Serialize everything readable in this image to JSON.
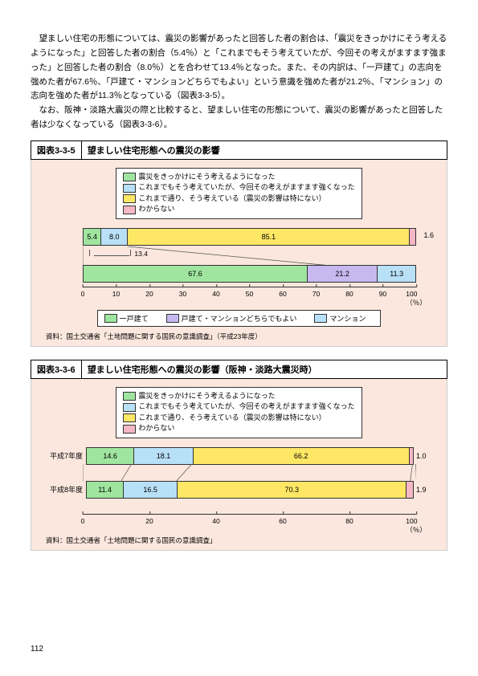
{
  "paragraphs": {
    "p1": "望ましい住宅の形態については、震災の影響があったと回答した者の割合は、「震災をきっかけにそう考えるようになった」と回答した者の割合（5.4％）と「これまでもそう考えていたが、今回その考えがますます強まった」と回答した者の割合（8.0％）とを合わせて13.4％となった。また、その内訳は、「一戸建て」の志向を強めた者が67.6％、「戸建て・マンションどちらでもよい」という意識を強めた者が21.2％、「マンション」の志向を強めた者が11.3％となっている（図表3-3-5）。",
    "p2": "なお、阪神・淡路大震災の際と比較すると、望ましい住宅の形態について、震災の影響があったと回答した者は少なくなっている（図表3-3-6）。"
  },
  "chart335": {
    "fig_no": "図表3-3-5",
    "title": "望ましい住宅形態への震災の影響",
    "legend": [
      {
        "label": "震災をきっかけにそう考えるようになった",
        "color": "#9fe59f"
      },
      {
        "label": "これまでもそう考えていたが、今回その考えがますます強くなった",
        "color": "#b8e0f7"
      },
      {
        "label": "これまで通り、そう考えている（震災の影響は特にない）",
        "color": "#ffe766"
      },
      {
        "label": "わからない",
        "color": "#f5b7c4"
      }
    ],
    "bar1": [
      {
        "v": 5.4,
        "label": "5.4",
        "color": "#9fe59f"
      },
      {
        "v": 8.0,
        "label": "8.0",
        "color": "#b8e0f7"
      },
      {
        "v": 85.1,
        "label": "85.1",
        "color": "#ffe766"
      },
      {
        "v": 1.6,
        "label": "1.6",
        "color": "#f5b7c4"
      }
    ],
    "bracket_label": "13.4",
    "bar2": [
      {
        "v": 67.6,
        "label": "67.6",
        "color": "#9fe59f"
      },
      {
        "v": 21.2,
        "label": "21.2",
        "color": "#c7b8f0"
      },
      {
        "v": 11.3,
        "label": "11.3",
        "color": "#b8e0f7"
      }
    ],
    "legend2": [
      {
        "label": "一戸建て",
        "color": "#9fe59f"
      },
      {
        "label": "戸建て・マンションどちらでもよい",
        "color": "#c7b8f0"
      },
      {
        "label": "マンション",
        "color": "#b8e0f7"
      }
    ],
    "xticks": [
      "0",
      "10",
      "20",
      "30",
      "40",
      "50",
      "60",
      "70",
      "80",
      "90",
      "100（％）"
    ],
    "source": "資料：国土交通省「土地問題に関する国民の意識調査」（平成23年度）"
  },
  "chart336": {
    "fig_no": "図表3-3-6",
    "title": "望ましい住宅形態への震災の影響（阪神・淡路大震災時）",
    "legend": [
      {
        "label": "震災をきっかけにそう考えるようになった",
        "color": "#9fe59f"
      },
      {
        "label": "これまでもそう考えていたが、今回その考えがますます強くなった",
        "color": "#b8e0f7"
      },
      {
        "label": "これまで通り、そう考えている（震災の影響は特にない）",
        "color": "#ffe766"
      },
      {
        "label": "わからない",
        "color": "#f5b7c4"
      }
    ],
    "rows": [
      {
        "ylabel": "平成7年度",
        "segs": [
          {
            "v": 14.6,
            "label": "14.6",
            "color": "#9fe59f"
          },
          {
            "v": 18.1,
            "label": "18.1",
            "color": "#b8e0f7"
          },
          {
            "v": 66.2,
            "label": "66.2",
            "color": "#ffe766"
          },
          {
            "v": 1.0,
            "label": "1.0",
            "color": "#f5b7c4"
          }
        ]
      },
      {
        "ylabel": "平成8年度",
        "segs": [
          {
            "v": 11.4,
            "label": "11.4",
            "color": "#9fe59f"
          },
          {
            "v": 16.5,
            "label": "16.5",
            "color": "#b8e0f7"
          },
          {
            "v": 70.3,
            "label": "70.3",
            "color": "#ffe766"
          },
          {
            "v": 1.9,
            "label": "1.9",
            "color": "#f5b7c4"
          }
        ]
      }
    ],
    "xticks": [
      "0",
      "20",
      "40",
      "60",
      "80",
      "100（％）"
    ],
    "source": "資料：国土交通省「土地問題に関する国民の意識調査」"
  },
  "page_number": "112"
}
